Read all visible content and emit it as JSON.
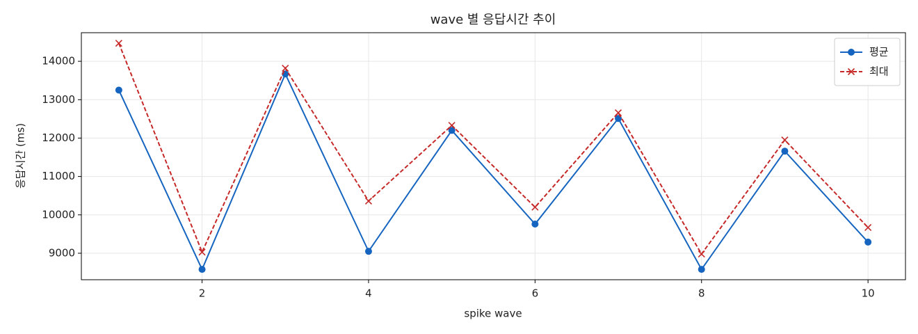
{
  "chart_data": {
    "type": "line",
    "title": "wave 별 응답시간 추이",
    "x_label": "spike wave",
    "y_label": "응답시간 (ms)",
    "x": [
      1,
      2,
      3,
      4,
      5,
      6,
      7,
      8,
      9,
      10
    ],
    "series": [
      {
        "name": "평균",
        "color": "#1565c0",
        "dash": "solid",
        "marker": "circle",
        "values": [
          13250,
          8580,
          13670,
          9050,
          12200,
          9760,
          12510,
          8580,
          11660,
          9290
        ]
      },
      {
        "name": "최대",
        "color": "#c62828",
        "dash": "dashed",
        "marker": "x",
        "values": [
          14470,
          9030,
          13820,
          10360,
          12330,
          10200,
          12660,
          8980,
          11950,
          9670
        ]
      }
    ],
    "xlim": [
      0.55,
      10.45
    ],
    "xticks": [
      2,
      4,
      6,
      8,
      10
    ],
    "ylim": [
      8310,
      14745
    ],
    "yticks": [
      9000,
      10000,
      11000,
      12000,
      13000,
      14000
    ],
    "grid": true,
    "legend": "upper right"
  }
}
